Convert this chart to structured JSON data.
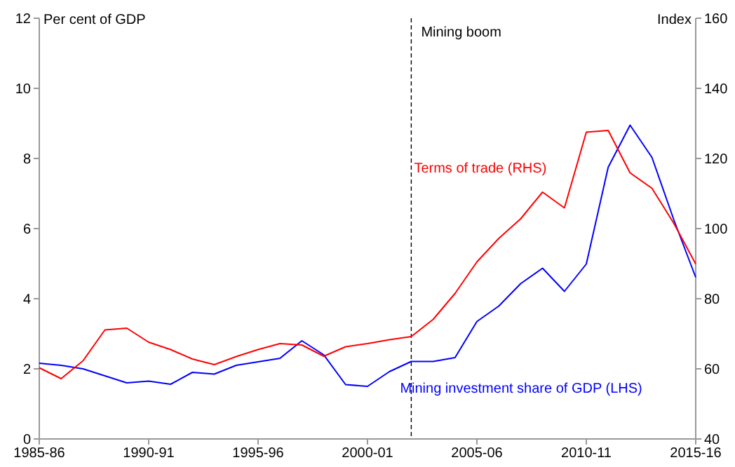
{
  "chart_data": {
    "type": "line",
    "categories": [
      "1985-86",
      null,
      null,
      null,
      null,
      "1990-91",
      null,
      null,
      null,
      null,
      "1995-96",
      null,
      null,
      null,
      null,
      "2000-01",
      null,
      null,
      null,
      null,
      "2005-06",
      null,
      null,
      null,
      null,
      "2010-11",
      null,
      null,
      null,
      null,
      "2015-16"
    ],
    "series": [
      {
        "name": "Mining investment share of GDP (LHS)",
        "color": "#0000ff",
        "values": [
          2.16,
          2.1,
          2.0,
          1.8,
          1.6,
          1.65,
          1.56,
          1.9,
          1.85,
          2.1,
          2.2,
          2.3,
          2.8,
          2.4,
          1.55,
          1.5,
          1.92,
          2.21,
          2.21,
          2.32,
          3.35,
          3.79,
          4.43,
          4.87,
          4.21,
          4.99,
          7.75,
          8.95,
          8.03,
          6.25,
          4.61
        ]
      },
      {
        "name": "Terms of trade (RHS)",
        "color": "#ff0000",
        "axis": "y2",
        "values": [
          60.3,
          57.2,
          62.3,
          71.1,
          71.6,
          67.6,
          65.5,
          62.8,
          61.2,
          63.5,
          65.5,
          67.2,
          66.8,
          63.6,
          66.3,
          67.2,
          68.3,
          69.2,
          74.1,
          81.5,
          90.5,
          97.2,
          102.8,
          110.4,
          105.9,
          127.5,
          128,
          115.9,
          111.5,
          101.5,
          89.9
        ]
      }
    ],
    "ylim": [
      0,
      12
    ],
    "yticks": [
      0,
      2,
      4,
      6,
      8,
      10,
      12
    ],
    "y2lim": [
      40,
      160
    ],
    "y2ticks": [
      40,
      60,
      80,
      100,
      120,
      140,
      160
    ],
    "ylabel": "Per cent of GDP",
    "y2label": "Index",
    "annotations": [
      "Mining boom"
    ],
    "legend": false,
    "marker": "none",
    "line_style": "solid"
  }
}
